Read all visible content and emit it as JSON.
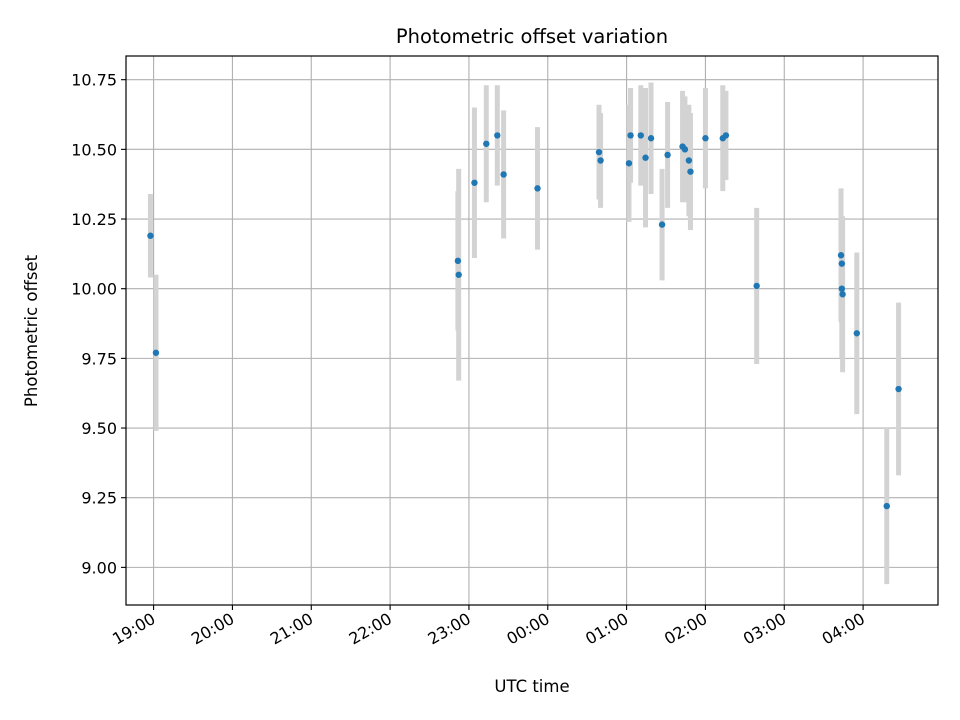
{
  "chart_data": {
    "type": "scatter",
    "title": "Photometric offset variation",
    "xlabel": "UTC time",
    "ylabel": "Photometric offset",
    "x_unit": "hours UTC (values past 24 are the following day)",
    "xlim": [
      18.65,
      28.95
    ],
    "ylim": [
      8.865,
      10.835
    ],
    "grid": true,
    "x_ticks": [
      {
        "value": 19,
        "label": "19:00"
      },
      {
        "value": 20,
        "label": "20:00"
      },
      {
        "value": 21,
        "label": "21:00"
      },
      {
        "value": 22,
        "label": "22:00"
      },
      {
        "value": 23,
        "label": "23:00"
      },
      {
        "value": 24,
        "label": "00:00"
      },
      {
        "value": 25,
        "label": "01:00"
      },
      {
        "value": 26,
        "label": "02:00"
      },
      {
        "value": 27,
        "label": "03:00"
      },
      {
        "value": 28,
        "label": "04:00"
      }
    ],
    "y_ticks": [
      {
        "value": 9.0,
        "label": "9.00"
      },
      {
        "value": 9.25,
        "label": "9.25"
      },
      {
        "value": 9.5,
        "label": "9.50"
      },
      {
        "value": 9.75,
        "label": "9.75"
      },
      {
        "value": 10.0,
        "label": "10.00"
      },
      {
        "value": 10.25,
        "label": "10.25"
      },
      {
        "value": 10.5,
        "label": "10.50"
      },
      {
        "value": 10.75,
        "label": "10.75"
      }
    ],
    "colors": {
      "point": "#1f77b4",
      "errorbar": "#d3d3d3",
      "grid": "#b0b0b0"
    },
    "points": [
      {
        "x": 18.96,
        "y": 10.19,
        "yerr": 0.15
      },
      {
        "x": 19.03,
        "y": 9.77,
        "yerr": 0.28
      },
      {
        "x": 22.86,
        "y": 10.1,
        "yerr": 0.25
      },
      {
        "x": 22.87,
        "y": 10.05,
        "yerr": 0.38
      },
      {
        "x": 23.07,
        "y": 10.38,
        "yerr": 0.27
      },
      {
        "x": 23.22,
        "y": 10.52,
        "yerr": 0.21
      },
      {
        "x": 23.36,
        "y": 10.55,
        "yerr": 0.18
      },
      {
        "x": 23.44,
        "y": 10.41,
        "yerr": 0.23
      },
      {
        "x": 23.87,
        "y": 10.36,
        "yerr": 0.22
      },
      {
        "x": 24.65,
        "y": 10.49,
        "yerr": 0.17
      },
      {
        "x": 24.67,
        "y": 10.46,
        "yerr": 0.17
      },
      {
        "x": 25.03,
        "y": 10.45,
        "yerr": 0.21
      },
      {
        "x": 25.05,
        "y": 10.55,
        "yerr": 0.17
      },
      {
        "x": 25.18,
        "y": 10.55,
        "yerr": 0.18
      },
      {
        "x": 25.24,
        "y": 10.47,
        "yerr": 0.25
      },
      {
        "x": 25.31,
        "y": 10.54,
        "yerr": 0.2
      },
      {
        "x": 25.45,
        "y": 10.23,
        "yerr": 0.2
      },
      {
        "x": 25.52,
        "y": 10.48,
        "yerr": 0.19
      },
      {
        "x": 25.71,
        "y": 10.51,
        "yerr": 0.2
      },
      {
        "x": 25.74,
        "y": 10.5,
        "yerr": 0.19
      },
      {
        "x": 25.79,
        "y": 10.46,
        "yerr": 0.2
      },
      {
        "x": 25.81,
        "y": 10.42,
        "yerr": 0.21
      },
      {
        "x": 26.0,
        "y": 10.54,
        "yerr": 0.18
      },
      {
        "x": 26.22,
        "y": 10.54,
        "yerr": 0.19
      },
      {
        "x": 26.26,
        "y": 10.55,
        "yerr": 0.16
      },
      {
        "x": 26.65,
        "y": 10.01,
        "yerr": 0.28
      },
      {
        "x": 27.72,
        "y": 10.12,
        "yerr": 0.24
      },
      {
        "x": 27.73,
        "y": 10.09,
        "yerr": 0.16
      },
      {
        "x": 27.73,
        "y": 10.0,
        "yerr": 0.25
      },
      {
        "x": 27.74,
        "y": 9.98,
        "yerr": 0.28
      },
      {
        "x": 27.92,
        "y": 9.84,
        "yerr": 0.29
      },
      {
        "x": 28.3,
        "y": 9.22,
        "yerr": 0.28
      },
      {
        "x": 28.45,
        "y": 9.64,
        "yerr": 0.31
      }
    ]
  }
}
